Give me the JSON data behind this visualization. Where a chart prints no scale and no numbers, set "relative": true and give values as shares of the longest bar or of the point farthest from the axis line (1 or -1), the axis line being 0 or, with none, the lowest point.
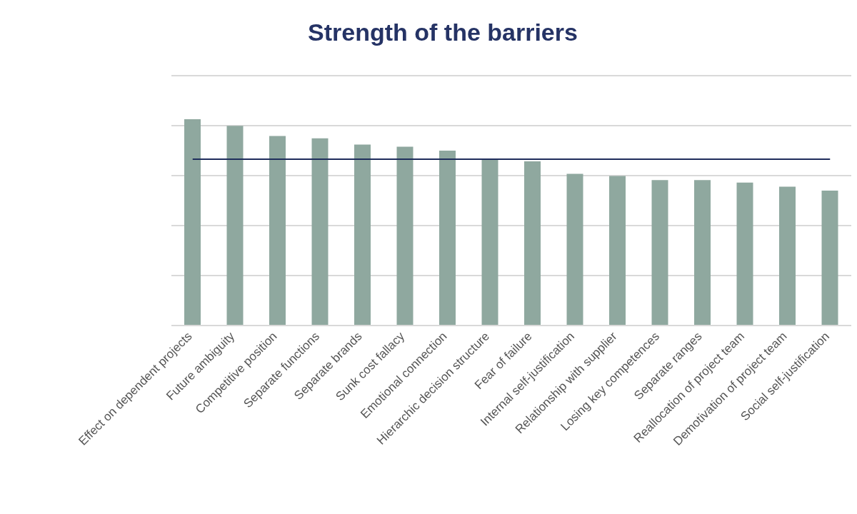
{
  "chart_data": {
    "type": "bar",
    "title": "Strength of the barriers",
    "relative": true,
    "grid": "y",
    "color": "#8fa89f",
    "categories": [
      "Effect on dependent projects",
      "Future ambiguity",
      "Competitive position",
      "Separate functions",
      "Separate brands",
      "Sunk cost fallacy",
      "Emotional connection",
      "Hierarchic decision structure",
      "Fear of failure",
      "Internal self-justification",
      "Relationship with supplier",
      "Losing key competences",
      "Separate ranges",
      "Reallocation of project team",
      "Demotivation of project team",
      "Social self-justification"
    ],
    "values": [
      1,
      0.968,
      0.919,
      0.907,
      0.877,
      0.867,
      0.848,
      0.803,
      0.796,
      0.735,
      0.725,
      0.705,
      0.705,
      0.693,
      0.673,
      0.654
    ],
    "ref_lines": [
      {
        "axis": "y",
        "value": 0.806,
        "color": "#1f2d5c"
      }
    ]
  }
}
